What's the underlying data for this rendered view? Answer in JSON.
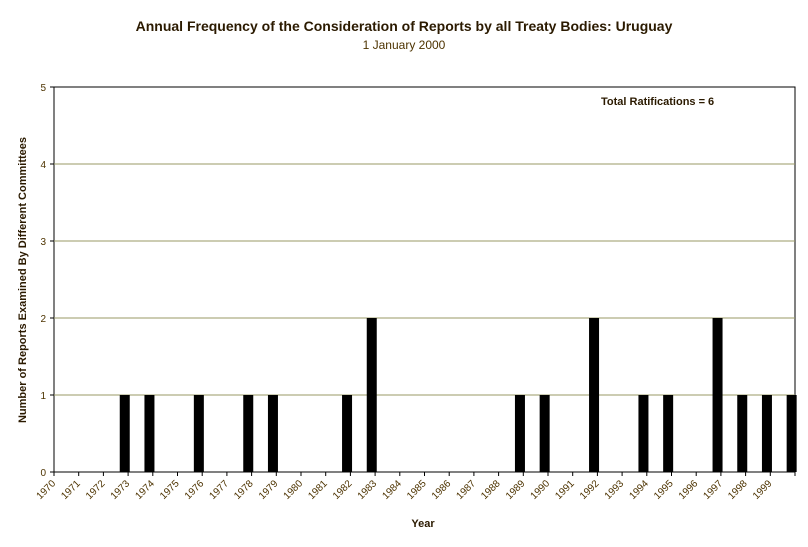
{
  "chart_data": {
    "type": "bar",
    "title": "Annual Frequency of the Consideration of Reports by all Treaty Bodies: Uruguay",
    "subtitle": "1 January 2000",
    "xlabel": "Year",
    "ylabel": "Number of Reports Examined By Different Committees",
    "annotation": "Total Ratifications = 6",
    "ylim": [
      0,
      5
    ],
    "yticks": [
      "0",
      "1",
      "2",
      "3",
      "4",
      "5"
    ],
    "grid": true,
    "colors": {
      "bar": "#000000",
      "grid": "#999966",
      "axis": "#000000"
    },
    "categories": [
      "1970",
      "1971",
      "1972",
      "1973",
      "1974",
      "1975",
      "1976",
      "1977",
      "1978",
      "1979",
      "1980",
      "1981",
      "1982",
      "1983",
      "1984",
      "1985",
      "1986",
      "1987",
      "1988",
      "1989",
      "1990",
      "1991",
      "1992",
      "1993",
      "1994",
      "1995",
      "1996",
      "1997",
      "1998",
      "1999"
    ],
    "values": [
      0,
      0,
      1,
      1,
      0,
      1,
      0,
      1,
      1,
      0,
      0,
      1,
      2,
      0,
      0,
      0,
      0,
      0,
      1,
      1,
      0,
      2,
      0,
      1,
      1,
      0,
      2,
      1,
      1,
      1
    ]
  }
}
